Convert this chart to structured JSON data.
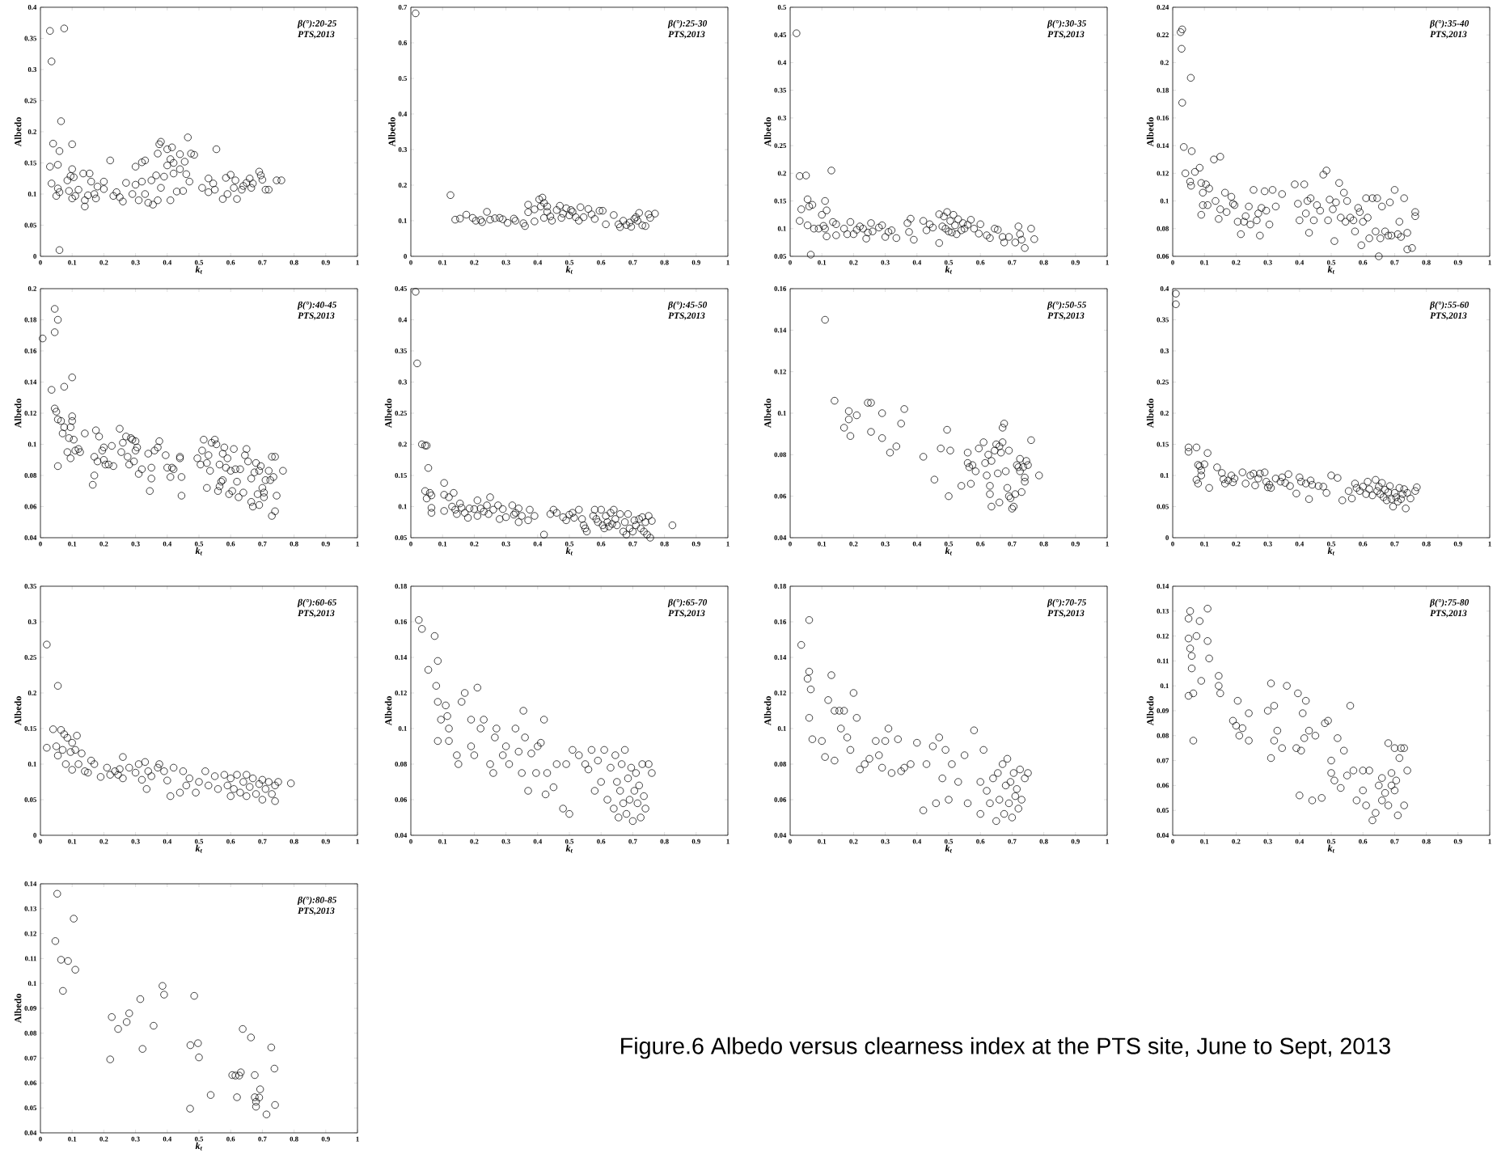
{
  "chart_data": [
    {
      "type": "scatter",
      "marker": "circle",
      "color": "#000000",
      "xlabel": "k$_{t}$",
      "ylabel": "Albedo",
      "annotations": [
        "β(°):20-25",
        "PTS,2013"
      ],
      "xlim": [
        0,
        1
      ],
      "xticks": [
        0,
        0.1,
        0.2,
        0.3,
        0.4,
        0.5,
        0.6,
        0.7,
        0.8,
        0.9,
        1
      ],
      "ylim": [
        0,
        0.4
      ],
      "yticks": [
        0,
        0.05,
        0.1,
        0.15,
        0.2,
        0.25,
        0.3,
        0.35,
        0.4
      ],
      "x": [
        0.03,
        0.035,
        0.075,
        0.065,
        0.04,
        0.06,
        0.03,
        0.055,
        0.035,
        0.05,
        0.055,
        0.06,
        0.06,
        0.085,
        0.09,
        0.095,
        0.1,
        0.105,
        0.1,
        0.1,
        0.11,
        0.12,
        0.135,
        0.14,
        0.14,
        0.15,
        0.155,
        0.16,
        0.17,
        0.18,
        0.175,
        0.2,
        0.2,
        0.22,
        0.23,
        0.24,
        0.25,
        0.26,
        0.27,
        0.29,
        0.3,
        0.3,
        0.31,
        0.32,
        0.32,
        0.33,
        0.33,
        0.34,
        0.35,
        0.355,
        0.365,
        0.37,
        0.37,
        0.375,
        0.38,
        0.38,
        0.39,
        0.4,
        0.4,
        0.41,
        0.41,
        0.415,
        0.42,
        0.42,
        0.43,
        0.44,
        0.44,
        0.45,
        0.455,
        0.46,
        0.465,
        0.47,
        0.475,
        0.485,
        0.51,
        0.53,
        0.53,
        0.545,
        0.55,
        0.555,
        0.575,
        0.585,
        0.59,
        0.6,
        0.61,
        0.615,
        0.62,
        0.635,
        0.64,
        0.65,
        0.66,
        0.665,
        0.67,
        0.69,
        0.695,
        0.7,
        0.71,
        0.72,
        0.745,
        0.76
      ],
      "values": [
        0.362,
        0.313,
        0.366,
        0.217,
        0.181,
        0.169,
        0.144,
        0.147,
        0.117,
        0.097,
        0.109,
        0.103,
        0.01,
        0.122,
        0.105,
        0.129,
        0.14,
        0.127,
        0.18,
        0.093,
        0.097,
        0.107,
        0.133,
        0.08,
        0.09,
        0.098,
        0.133,
        0.12,
        0.1,
        0.112,
        0.093,
        0.12,
        0.108,
        0.154,
        0.097,
        0.103,
        0.095,
        0.088,
        0.118,
        0.1,
        0.144,
        0.115,
        0.09,
        0.12,
        0.151,
        0.154,
        0.1,
        0.086,
        0.122,
        0.083,
        0.13,
        0.09,
        0.165,
        0.18,
        0.184,
        0.11,
        0.128,
        0.146,
        0.172,
        0.09,
        0.156,
        0.175,
        0.133,
        0.15,
        0.104,
        0.164,
        0.14,
        0.105,
        0.152,
        0.132,
        0.191,
        0.12,
        0.165,
        0.163,
        0.11,
        0.125,
        0.103,
        0.117,
        0.107,
        0.172,
        0.092,
        0.126,
        0.1,
        0.131,
        0.11,
        0.122,
        0.092,
        0.107,
        0.113,
        0.118,
        0.125,
        0.11,
        0.117,
        0.136,
        0.13,
        0.123,
        0.107,
        0.107,
        0.122,
        0.122
      ]
    },
    {
      "type": "scatter",
      "marker": "circle",
      "color": "#000000",
      "xlabel": "k$_{t}$",
      "ylabel": "Albedo",
      "annotations": [
        "β(°):25-30",
        "PTS,2013"
      ],
      "xlim": [
        0,
        1
      ],
      "xticks": [
        0,
        0.1,
        0.2,
        0.3,
        0.4,
        0.5,
        0.6,
        0.7,
        0.8,
        0.9,
        1
      ],
      "ylim": [
        0,
        0.7
      ],
      "yticks": [
        0,
        0.1,
        0.2,
        0.3,
        0.4,
        0.5,
        0.6,
        0.7
      ],
      "x": [
        0.015,
        0.125,
        0.14,
        0.155,
        0.175,
        0.195,
        0.205,
        0.22,
        0.225,
        0.24,
        0.25,
        0.265,
        0.28,
        0.29,
        0.305,
        0.325,
        0.33,
        0.355,
        0.36,
        0.37,
        0.37,
        0.39,
        0.39,
        0.405,
        0.41,
        0.415,
        0.42,
        0.42,
        0.43,
        0.43,
        0.44,
        0.445,
        0.46,
        0.47,
        0.475,
        0.48,
        0.49,
        0.5,
        0.505,
        0.51,
        0.52,
        0.53,
        0.535,
        0.545,
        0.56,
        0.57,
        0.58,
        0.595,
        0.605,
        0.615,
        0.64,
        0.655,
        0.66,
        0.67,
        0.68,
        0.69,
        0.695,
        0.705,
        0.71,
        0.715,
        0.72,
        0.73,
        0.74,
        0.75,
        0.755,
        0.77
      ],
      "values": [
        0.683,
        0.172,
        0.103,
        0.106,
        0.117,
        0.108,
        0.1,
        0.102,
        0.096,
        0.125,
        0.103,
        0.107,
        0.108,
        0.104,
        0.094,
        0.106,
        0.1,
        0.093,
        0.085,
        0.145,
        0.124,
        0.098,
        0.132,
        0.16,
        0.14,
        0.165,
        0.15,
        0.108,
        0.14,
        0.125,
        0.112,
        0.1,
        0.13,
        0.142,
        0.108,
        0.12,
        0.135,
        0.115,
        0.13,
        0.125,
        0.11,
        0.1,
        0.138,
        0.11,
        0.133,
        0.118,
        0.105,
        0.128,
        0.128,
        0.09,
        0.116,
        0.09,
        0.082,
        0.1,
        0.088,
        0.095,
        0.083,
        0.105,
        0.11,
        0.1,
        0.122,
        0.087,
        0.085,
        0.118,
        0.108,
        0.12
      ]
    },
    {
      "type": "scatter",
      "marker": "circle",
      "color": "#000000",
      "xlabel": "k$_{t}$",
      "ylabel": "Albedo",
      "annotations": [
        "β(°):30-35",
        "PTS,2013"
      ],
      "xlim": [
        0,
        1
      ],
      "xticks": [
        0,
        0.1,
        0.2,
        0.3,
        0.4,
        0.5,
        0.6,
        0.7,
        0.8,
        0.9,
        1
      ],
      "ylim": [
        0.05,
        0.5
      ],
      "yticks": [
        0.05,
        0.1,
        0.15,
        0.2,
        0.25,
        0.3,
        0.35,
        0.4,
        0.45,
        0.5
      ],
      "x": [
        0.02,
        0.03,
        0.05,
        0.13,
        0.055,
        0.035,
        0.06,
        0.07,
        0.03,
        0.055,
        0.065,
        0.075,
        0.09,
        0.1,
        0.105,
        0.11,
        0.11,
        0.115,
        0.115,
        0.135,
        0.145,
        0.145,
        0.17,
        0.18,
        0.19,
        0.2,
        0.21,
        0.22,
        0.23,
        0.24,
        0.245,
        0.255,
        0.26,
        0.28,
        0.29,
        0.3,
        0.31,
        0.32,
        0.335,
        0.37,
        0.375,
        0.38,
        0.39,
        0.42,
        0.43,
        0.44,
        0.45,
        0.47,
        0.47,
        0.48,
        0.485,
        0.49,
        0.495,
        0.5,
        0.505,
        0.51,
        0.515,
        0.52,
        0.525,
        0.53,
        0.54,
        0.545,
        0.55,
        0.56,
        0.57,
        0.58,
        0.595,
        0.6,
        0.62,
        0.63,
        0.645,
        0.655,
        0.67,
        0.675,
        0.69,
        0.71,
        0.72,
        0.725,
        0.73,
        0.74,
        0.76,
        0.77
      ],
      "values": [
        0.453,
        0.195,
        0.196,
        0.205,
        0.153,
        0.135,
        0.14,
        0.143,
        0.114,
        0.106,
        0.053,
        0.1,
        0.1,
        0.125,
        0.105,
        0.1,
        0.15,
        0.133,
        0.086,
        0.112,
        0.108,
        0.088,
        0.1,
        0.09,
        0.112,
        0.09,
        0.098,
        0.104,
        0.1,
        0.082,
        0.093,
        0.11,
        0.095,
        0.102,
        0.106,
        0.085,
        0.094,
        0.097,
        0.083,
        0.11,
        0.094,
        0.118,
        0.08,
        0.114,
        0.097,
        0.108,
        0.102,
        0.074,
        0.126,
        0.104,
        0.122,
        0.1,
        0.13,
        0.095,
        0.114,
        0.093,
        0.125,
        0.106,
        0.09,
        0.117,
        0.097,
        0.11,
        0.1,
        0.107,
        0.116,
        0.1,
        0.091,
        0.108,
        0.088,
        0.083,
        0.1,
        0.098,
        0.085,
        0.075,
        0.085,
        0.075,
        0.104,
        0.09,
        0.08,
        0.065,
        0.1,
        0.081
      ]
    },
    {
      "type": "scatter",
      "marker": "circle",
      "color": "#000000",
      "xlabel": "k$_{t}$",
      "ylabel": "Albedo",
      "annotations": [
        "β(°):35-40",
        "PTS,2013"
      ],
      "xlim": [
        0,
        1
      ],
      "xticks": [
        0,
        0.1,
        0.2,
        0.3,
        0.4,
        0.5,
        0.6,
        0.7,
        0.8,
        0.9,
        1
      ],
      "ylim": [
        0.06,
        0.24
      ],
      "yticks": [
        0.06,
        0.08,
        0.1,
        0.12,
        0.14,
        0.16,
        0.18,
        0.2,
        0.22,
        0.24
      ],
      "x": [
        0.025,
        0.03,
        0.028,
        0.03,
        0.057,
        0.035,
        0.06,
        0.04,
        0.055,
        0.058,
        0.07,
        0.085,
        0.09,
        0.095,
        0.095,
        0.09,
        0.105,
        0.11,
        0.115,
        0.13,
        0.135,
        0.15,
        0.145,
        0.15,
        0.165,
        0.17,
        0.185,
        0.19,
        0.195,
        0.205,
        0.215,
        0.225,
        0.23,
        0.24,
        0.245,
        0.255,
        0.265,
        0.27,
        0.275,
        0.28,
        0.29,
        0.295,
        0.305,
        0.315,
        0.325,
        0.345,
        0.385,
        0.395,
        0.4,
        0.415,
        0.42,
        0.425,
        0.43,
        0.435,
        0.445,
        0.455,
        0.465,
        0.475,
        0.485,
        0.49,
        0.495,
        0.505,
        0.51,
        0.515,
        0.525,
        0.53,
        0.54,
        0.545,
        0.55,
        0.56,
        0.57,
        0.575,
        0.585,
        0.59,
        0.595,
        0.6,
        0.61,
        0.615,
        0.62,
        0.63,
        0.64,
        0.645,
        0.65,
        0.655,
        0.66,
        0.67,
        0.68,
        0.685,
        0.69,
        0.7,
        0.71,
        0.715,
        0.72,
        0.73,
        0.74,
        0.74,
        0.755,
        0.765,
        0.765
      ],
      "values": [
        0.222,
        0.224,
        0.21,
        0.171,
        0.189,
        0.139,
        0.136,
        0.12,
        0.114,
        0.111,
        0.121,
        0.124,
        0.113,
        0.106,
        0.097,
        0.09,
        0.112,
        0.097,
        0.109,
        0.13,
        0.1,
        0.132,
        0.087,
        0.094,
        0.106,
        0.092,
        0.103,
        0.098,
        0.097,
        0.085,
        0.076,
        0.085,
        0.089,
        0.096,
        0.083,
        0.108,
        0.086,
        0.091,
        0.075,
        0.095,
        0.107,
        0.093,
        0.083,
        0.108,
        0.096,
        0.105,
        0.112,
        0.098,
        0.086,
        0.112,
        0.091,
        0.1,
        0.077,
        0.102,
        0.086,
        0.097,
        0.093,
        0.119,
        0.122,
        0.086,
        0.101,
        0.094,
        0.071,
        0.099,
        0.113,
        0.088,
        0.106,
        0.085,
        0.1,
        0.088,
        0.086,
        0.078,
        0.095,
        0.092,
        0.068,
        0.085,
        0.102,
        0.088,
        0.073,
        0.102,
        0.078,
        0.102,
        0.06,
        0.073,
        0.096,
        0.078,
        0.075,
        0.099,
        0.075,
        0.108,
        0.076,
        0.085,
        0.074,
        0.102,
        0.077,
        0.065,
        0.066,
        0.092,
        0.089
      ]
    },
    {
      "type": "scatter",
      "marker": "circle",
      "color": "#000000",
      "xlabel": "k$_{t}$",
      "ylabel": "Albedo",
      "annotations": [
        "β(°):40-45",
        "PTS,2013"
      ],
      "xlim": [
        0,
        1
      ],
      "xticks": [
        0,
        0.1,
        0.2,
        0.3,
        0.4,
        0.5,
        0.6,
        0.7,
        0.8,
        0.9,
        1
      ],
      "ylim": [
        0.04,
        0.2
      ],
      "yticks": [
        0.04,
        0.06,
        0.08,
        0.1,
        0.12,
        0.14,
        0.16,
        0.18,
        0.2
      ],
      "x": [
        0.007,
        0.045,
        0.045,
        0.055,
        0.035,
        0.075,
        0.1,
        0.045,
        0.05,
        0.055,
        0.065,
        0.07,
        0.075,
        0.055,
        0.085,
        0.09,
        0.095,
        0.095,
        0.1,
        0.1,
        0.105,
        0.11,
        0.12,
        0.125,
        0.14,
        0.165,
        0.17,
        0.17,
        0.175,
        0.18,
        0.185,
        0.195,
        0.2,
        0.2,
        0.205,
        0.215,
        0.225,
        0.23,
        0.25,
        0.255,
        0.26,
        0.27,
        0.275,
        0.28,
        0.285,
        0.29,
        0.295,
        0.3,
        0.3,
        0.305,
        0.31,
        0.32,
        0.34,
        0.345,
        0.35,
        0.35,
        0.36,
        0.37,
        0.375,
        0.395,
        0.4,
        0.41,
        0.415,
        0.42,
        0.44,
        0.44,
        0.445,
        0.445,
        0.495,
        0.505,
        0.51,
        0.515,
        0.525,
        0.525,
        0.53,
        0.535,
        0.54,
        0.55,
        0.555,
        0.56,
        0.565,
        0.565,
        0.57,
        0.575,
        0.575,
        0.58,
        0.585,
        0.59,
        0.595,
        0.6,
        0.605,
        0.61,
        0.615,
        0.62,
        0.625,
        0.63,
        0.64,
        0.645,
        0.65,
        0.655,
        0.665,
        0.665,
        0.67,
        0.675,
        0.68,
        0.685,
        0.69,
        0.69,
        0.695,
        0.7,
        0.705,
        0.705,
        0.71,
        0.72,
        0.725,
        0.73,
        0.73,
        0.735,
        0.74,
        0.74,
        0.745,
        0.765
      ],
      "values": [
        0.168,
        0.187,
        0.172,
        0.18,
        0.135,
        0.137,
        0.143,
        0.123,
        0.121,
        0.116,
        0.115,
        0.107,
        0.111,
        0.086,
        0.095,
        0.104,
        0.111,
        0.091,
        0.118,
        0.115,
        0.103,
        0.096,
        0.097,
        0.095,
        0.107,
        0.074,
        0.08,
        0.092,
        0.109,
        0.089,
        0.105,
        0.096,
        0.09,
        0.098,
        0.087,
        0.087,
        0.099,
        0.086,
        0.11,
        0.095,
        0.101,
        0.105,
        0.092,
        0.087,
        0.104,
        0.103,
        0.089,
        0.096,
        0.102,
        0.098,
        0.081,
        0.084,
        0.094,
        0.07,
        0.078,
        0.085,
        0.096,
        0.098,
        0.102,
        0.093,
        0.085,
        0.079,
        0.085,
        0.084,
        0.091,
        0.092,
        0.079,
        0.067,
        0.091,
        0.087,
        0.096,
        0.103,
        0.072,
        0.088,
        0.093,
        0.083,
        0.101,
        0.103,
        0.1,
        0.07,
        0.073,
        0.087,
        0.076,
        0.077,
        0.094,
        0.098,
        0.085,
        0.091,
        0.068,
        0.083,
        0.07,
        0.097,
        0.084,
        0.076,
        0.066,
        0.084,
        0.069,
        0.093,
        0.097,
        0.089,
        0.078,
        0.063,
        0.06,
        0.082,
        0.088,
        0.068,
        0.083,
        0.061,
        0.086,
        0.072,
        0.069,
        0.066,
        0.077,
        0.083,
        0.077,
        0.092,
        0.054,
        0.079,
        0.092,
        0.057,
        0.067,
        0.083
      ]
    },
    {
      "type": "scatter",
      "marker": "circle",
      "color": "#000000",
      "xlabel": "k$_{t}$",
      "ylabel": "Albedo",
      "annotations": [
        "β(°):45-50",
        "PTS,2013"
      ],
      "xlim": [
        0,
        1
      ],
      "xticks": [
        0,
        0.1,
        0.2,
        0.3,
        0.4,
        0.5,
        0.6,
        0.7,
        0.8,
        0.9,
        1
      ],
      "ylim": [
        0.05,
        0.45
      ],
      "yticks": [
        0.05,
        0.1,
        0.15,
        0.2,
        0.25,
        0.3,
        0.35,
        0.4,
        0.45
      ],
      "x": [
        0.015,
        0.02,
        0.035,
        0.045,
        0.05,
        0.055,
        0.045,
        0.05,
        0.06,
        0.065,
        0.065,
        0.065,
        0.105,
        0.105,
        0.105,
        0.12,
        0.13,
        0.135,
        0.14,
        0.145,
        0.155,
        0.16,
        0.17,
        0.18,
        0.185,
        0.2,
        0.21,
        0.21,
        0.22,
        0.23,
        0.24,
        0.245,
        0.25,
        0.26,
        0.275,
        0.28,
        0.29,
        0.3,
        0.32,
        0.325,
        0.33,
        0.34,
        0.34,
        0.35,
        0.37,
        0.375,
        0.39,
        0.42,
        0.44,
        0.45,
        0.46,
        0.48,
        0.49,
        0.5,
        0.51,
        0.515,
        0.53,
        0.54,
        0.545,
        0.55,
        0.555,
        0.575,
        0.58,
        0.585,
        0.59,
        0.6,
        0.605,
        0.61,
        0.615,
        0.62,
        0.625,
        0.63,
        0.635,
        0.64,
        0.645,
        0.65,
        0.66,
        0.67,
        0.675,
        0.68,
        0.685,
        0.69,
        0.7,
        0.705,
        0.71,
        0.72,
        0.725,
        0.73,
        0.735,
        0.74,
        0.745,
        0.75,
        0.755,
        0.76,
        0.825
      ],
      "values": [
        0.445,
        0.33,
        0.2,
        0.198,
        0.198,
        0.162,
        0.125,
        0.113,
        0.122,
        0.118,
        0.098,
        0.09,
        0.138,
        0.119,
        0.093,
        0.115,
        0.1,
        0.122,
        0.095,
        0.088,
        0.105,
        0.098,
        0.09,
        0.082,
        0.097,
        0.096,
        0.11,
        0.085,
        0.097,
        0.092,
        0.102,
        0.088,
        0.115,
        0.095,
        0.102,
        0.08,
        0.096,
        0.083,
        0.102,
        0.087,
        0.09,
        0.075,
        0.097,
        0.085,
        0.078,
        0.095,
        0.085,
        0.055,
        0.088,
        0.095,
        0.09,
        0.083,
        0.078,
        0.087,
        0.09,
        0.082,
        0.095,
        0.08,
        0.07,
        0.065,
        0.06,
        0.085,
        0.095,
        0.08,
        0.075,
        0.095,
        0.07,
        0.065,
        0.085,
        0.075,
        0.068,
        0.09,
        0.072,
        0.095,
        0.08,
        0.07,
        0.088,
        0.06,
        0.075,
        0.055,
        0.088,
        0.065,
        0.06,
        0.078,
        0.07,
        0.08,
        0.065,
        0.083,
        0.06,
        0.075,
        0.055,
        0.085,
        0.05,
        0.077,
        0.07
      ]
    },
    {
      "type": "scatter",
      "marker": "circle",
      "color": "#000000",
      "xlabel": "k$_{t}$",
      "ylabel": "Albedo",
      "annotations": [
        "β(°):50-55",
        "PTS,2013"
      ],
      "xlim": [
        0,
        1
      ],
      "xticks": [
        0,
        0.1,
        0.2,
        0.3,
        0.4,
        0.5,
        0.6,
        0.7,
        0.8,
        0.9,
        1
      ],
      "ylim": [
        0.04,
        0.16
      ],
      "yticks": [
        0.04,
        0.06,
        0.08,
        0.1,
        0.12,
        0.14,
        0.16
      ],
      "x": [
        0.11,
        0.14,
        0.185,
        0.185,
        0.17,
        0.19,
        0.21,
        0.245,
        0.255,
        0.255,
        0.29,
        0.29,
        0.315,
        0.335,
        0.35,
        0.36,
        0.42,
        0.455,
        0.475,
        0.495,
        0.5,
        0.505,
        0.54,
        0.56,
        0.56,
        0.565,
        0.57,
        0.575,
        0.585,
        0.595,
        0.61,
        0.615,
        0.62,
        0.625,
        0.63,
        0.63,
        0.635,
        0.635,
        0.645,
        0.65,
        0.655,
        0.66,
        0.66,
        0.665,
        0.67,
        0.67,
        0.675,
        0.68,
        0.685,
        0.69,
        0.69,
        0.695,
        0.7,
        0.705,
        0.71,
        0.715,
        0.72,
        0.725,
        0.725,
        0.73,
        0.735,
        0.74,
        0.74,
        0.745,
        0.75,
        0.76,
        0.785
      ],
      "values": [
        0.145,
        0.106,
        0.101,
        0.097,
        0.093,
        0.089,
        0.099,
        0.105,
        0.105,
        0.091,
        0.1,
        0.088,
        0.081,
        0.084,
        0.095,
        0.102,
        0.079,
        0.068,
        0.083,
        0.092,
        0.06,
        0.082,
        0.065,
        0.081,
        0.076,
        0.074,
        0.066,
        0.075,
        0.072,
        0.083,
        0.086,
        0.076,
        0.07,
        0.08,
        0.065,
        0.061,
        0.055,
        0.077,
        0.082,
        0.085,
        0.071,
        0.084,
        0.057,
        0.081,
        0.093,
        0.086,
        0.095,
        0.072,
        0.064,
        0.082,
        0.06,
        0.059,
        0.054,
        0.055,
        0.061,
        0.075,
        0.074,
        0.078,
        0.072,
        0.062,
        0.074,
        0.069,
        0.067,
        0.077,
        0.075,
        0.087,
        0.07
      ]
    },
    {
      "type": "scatter",
      "marker": "circle",
      "color": "#000000",
      "xlabel": "k$_{t}$",
      "ylabel": "Albedo",
      "annotations": [
        "β(°):55-60",
        "PTS,2013"
      ],
      "xlim": [
        0,
        1
      ],
      "xticks": [
        0,
        0.1,
        0.2,
        0.3,
        0.4,
        0.5,
        0.6,
        0.7,
        0.8,
        0.9,
        1
      ],
      "ylim": [
        0,
        0.4
      ],
      "yticks": [
        0,
        0.05,
        0.1,
        0.15,
        0.2,
        0.25,
        0.3,
        0.35,
        0.4
      ],
      "x": [
        0.01,
        0.01,
        0.05,
        0.05,
        0.075,
        0.08,
        0.075,
        0.085,
        0.08,
        0.09,
        0.09,
        0.1,
        0.11,
        0.115,
        0.14,
        0.155,
        0.16,
        0.165,
        0.175,
        0.185,
        0.19,
        0.195,
        0.22,
        0.23,
        0.245,
        0.255,
        0.26,
        0.27,
        0.275,
        0.29,
        0.295,
        0.3,
        0.305,
        0.31,
        0.325,
        0.34,
        0.345,
        0.355,
        0.365,
        0.37,
        0.39,
        0.4,
        0.405,
        0.42,
        0.43,
        0.435,
        0.44,
        0.46,
        0.475,
        0.485,
        0.5,
        0.52,
        0.535,
        0.555,
        0.565,
        0.575,
        0.58,
        0.59,
        0.6,
        0.61,
        0.615,
        0.62,
        0.63,
        0.64,
        0.645,
        0.65,
        0.655,
        0.66,
        0.665,
        0.67,
        0.675,
        0.68,
        0.685,
        0.69,
        0.695,
        0.7,
        0.705,
        0.71,
        0.715,
        0.72,
        0.725,
        0.73,
        0.735,
        0.74,
        0.75,
        0.765,
        0.77
      ],
      "values": [
        0.392,
        0.375,
        0.145,
        0.138,
        0.145,
        0.117,
        0.093,
        0.115,
        0.087,
        0.1,
        0.108,
        0.118,
        0.136,
        0.08,
        0.113,
        0.104,
        0.094,
        0.087,
        0.092,
        0.1,
        0.089,
        0.095,
        0.105,
        0.087,
        0.1,
        0.103,
        0.084,
        0.095,
        0.103,
        0.105,
        0.09,
        0.081,
        0.085,
        0.08,
        0.095,
        0.09,
        0.097,
        0.088,
        0.102,
        0.083,
        0.071,
        0.097,
        0.09,
        0.087,
        0.062,
        0.092,
        0.085,
        0.083,
        0.082,
        0.072,
        0.1,
        0.096,
        0.06,
        0.075,
        0.063,
        0.087,
        0.08,
        0.075,
        0.082,
        0.07,
        0.09,
        0.078,
        0.068,
        0.093,
        0.075,
        0.082,
        0.07,
        0.088,
        0.065,
        0.077,
        0.06,
        0.073,
        0.083,
        0.062,
        0.05,
        0.072,
        0.065,
        0.058,
        0.08,
        0.062,
        0.07,
        0.078,
        0.047,
        0.072,
        0.063,
        0.075,
        0.081
      ]
    },
    {
      "type": "scatter",
      "marker": "circle",
      "color": "#000000",
      "xlabel": "k$_{t}$",
      "ylabel": "Albedo",
      "annotations": [
        "β(°):60-65",
        "PTS,2013"
      ],
      "xlim": [
        0,
        1
      ],
      "xticks": [
        0,
        0.1,
        0.2,
        0.3,
        0.4,
        0.5,
        0.6,
        0.7,
        0.8,
        0.9,
        1
      ],
      "ylim": [
        0,
        0.35
      ],
      "yticks": [
        0,
        0.05,
        0.1,
        0.15,
        0.2,
        0.25,
        0.3,
        0.35
      ],
      "x": [
        0.02,
        0.055,
        0.02,
        0.04,
        0.05,
        0.055,
        0.065,
        0.07,
        0.075,
        0.08,
        0.085,
        0.095,
        0.1,
        0.1,
        0.11,
        0.115,
        0.12,
        0.13,
        0.14,
        0.15,
        0.16,
        0.17,
        0.19,
        0.21,
        0.22,
        0.235,
        0.245,
        0.25,
        0.26,
        0.26,
        0.28,
        0.3,
        0.31,
        0.32,
        0.33,
        0.335,
        0.34,
        0.35,
        0.37,
        0.375,
        0.39,
        0.4,
        0.41,
        0.42,
        0.44,
        0.45,
        0.46,
        0.47,
        0.49,
        0.5,
        0.52,
        0.53,
        0.55,
        0.56,
        0.58,
        0.59,
        0.6,
        0.6,
        0.61,
        0.62,
        0.63,
        0.64,
        0.65,
        0.65,
        0.66,
        0.67,
        0.68,
        0.69,
        0.7,
        0.7,
        0.71,
        0.72,
        0.73,
        0.74,
        0.74,
        0.75,
        0.79
      ],
      "values": [
        0.268,
        0.21,
        0.123,
        0.149,
        0.125,
        0.112,
        0.148,
        0.12,
        0.142,
        0.1,
        0.137,
        0.117,
        0.13,
        0.092,
        0.12,
        0.14,
        0.1,
        0.115,
        0.09,
        0.088,
        0.105,
        0.1,
        0.082,
        0.095,
        0.085,
        0.09,
        0.085,
        0.093,
        0.11,
        0.08,
        0.095,
        0.088,
        0.1,
        0.078,
        0.103,
        0.065,
        0.09,
        0.083,
        0.095,
        0.1,
        0.09,
        0.077,
        0.055,
        0.095,
        0.06,
        0.09,
        0.07,
        0.08,
        0.06,
        0.075,
        0.09,
        0.07,
        0.083,
        0.065,
        0.085,
        0.07,
        0.055,
        0.08,
        0.065,
        0.085,
        0.06,
        0.075,
        0.055,
        0.085,
        0.068,
        0.08,
        0.058,
        0.072,
        0.05,
        0.078,
        0.065,
        0.075,
        0.058,
        0.048,
        0.07,
        0.075,
        0.073
      ]
    },
    {
      "type": "scatter",
      "marker": "circle",
      "color": "#000000",
      "xlabel": "k$_{t}$",
      "ylabel": "Albedo",
      "annotations": [
        "β(°):65-70",
        "PTS,2013"
      ],
      "xlim": [
        0,
        1
      ],
      "xticks": [
        0,
        0.1,
        0.2,
        0.3,
        0.4,
        0.5,
        0.6,
        0.7,
        0.8,
        0.9,
        1
      ],
      "ylim": [
        0.04,
        0.18
      ],
      "yticks": [
        0.04,
        0.06,
        0.08,
        0.1,
        0.12,
        0.14,
        0.16,
        0.18
      ],
      "x": [
        0.025,
        0.035,
        0.075,
        0.055,
        0.085,
        0.08,
        0.085,
        0.085,
        0.095,
        0.11,
        0.115,
        0.12,
        0.12,
        0.145,
        0.15,
        0.16,
        0.17,
        0.19,
        0.19,
        0.2,
        0.21,
        0.22,
        0.23,
        0.25,
        0.26,
        0.265,
        0.27,
        0.29,
        0.3,
        0.31,
        0.33,
        0.34,
        0.35,
        0.355,
        0.36,
        0.37,
        0.38,
        0.395,
        0.4,
        0.41,
        0.42,
        0.425,
        0.43,
        0.45,
        0.46,
        0.48,
        0.49,
        0.5,
        0.51,
        0.53,
        0.55,
        0.56,
        0.57,
        0.58,
        0.59,
        0.6,
        0.61,
        0.62,
        0.63,
        0.64,
        0.645,
        0.65,
        0.655,
        0.66,
        0.665,
        0.67,
        0.675,
        0.68,
        0.685,
        0.69,
        0.695,
        0.7,
        0.705,
        0.71,
        0.715,
        0.72,
        0.725,
        0.73,
        0.735,
        0.74,
        0.75,
        0.76
      ],
      "values": [
        0.161,
        0.156,
        0.152,
        0.133,
        0.138,
        0.124,
        0.115,
        0.093,
        0.105,
        0.113,
        0.107,
        0.093,
        0.1,
        0.085,
        0.08,
        0.115,
        0.12,
        0.105,
        0.09,
        0.085,
        0.123,
        0.1,
        0.105,
        0.08,
        0.075,
        0.095,
        0.1,
        0.085,
        0.09,
        0.08,
        0.1,
        0.087,
        0.075,
        0.11,
        0.095,
        0.065,
        0.086,
        0.075,
        0.09,
        0.092,
        0.105,
        0.063,
        0.075,
        0.067,
        0.08,
        0.055,
        0.08,
        0.052,
        0.088,
        0.085,
        0.08,
        0.077,
        0.088,
        0.065,
        0.082,
        0.07,
        0.088,
        0.06,
        0.078,
        0.055,
        0.085,
        0.07,
        0.05,
        0.065,
        0.08,
        0.058,
        0.088,
        0.052,
        0.072,
        0.06,
        0.078,
        0.048,
        0.065,
        0.075,
        0.058,
        0.068,
        0.05,
        0.08,
        0.062,
        0.055,
        0.08,
        0.075
      ]
    },
    {
      "type": "scatter",
      "marker": "circle",
      "color": "#000000",
      "xlabel": "k$_{t}$",
      "ylabel": "Albedo",
      "annotations": [
        "β(°):70-75",
        "PTS,2013"
      ],
      "xlim": [
        0,
        1
      ],
      "xticks": [
        0,
        0.1,
        0.2,
        0.3,
        0.4,
        0.5,
        0.6,
        0.7,
        0.8,
        0.9,
        1
      ],
      "ylim": [
        0.04,
        0.18
      ],
      "yticks": [
        0.04,
        0.06,
        0.08,
        0.1,
        0.12,
        0.14,
        0.16,
        0.18
      ],
      "x": [
        0.035,
        0.06,
        0.055,
        0.06,
        0.065,
        0.06,
        0.07,
        0.1,
        0.11,
        0.12,
        0.13,
        0.14,
        0.14,
        0.155,
        0.16,
        0.17,
        0.18,
        0.19,
        0.2,
        0.21,
        0.22,
        0.235,
        0.25,
        0.27,
        0.28,
        0.29,
        0.3,
        0.31,
        0.32,
        0.34,
        0.35,
        0.36,
        0.38,
        0.4,
        0.42,
        0.43,
        0.45,
        0.46,
        0.47,
        0.48,
        0.49,
        0.5,
        0.51,
        0.53,
        0.55,
        0.56,
        0.58,
        0.6,
        0.6,
        0.61,
        0.62,
        0.63,
        0.64,
        0.65,
        0.655,
        0.66,
        0.67,
        0.675,
        0.68,
        0.685,
        0.69,
        0.695,
        0.7,
        0.705,
        0.71,
        0.715,
        0.72,
        0.725,
        0.73,
        0.74,
        0.75
      ],
      "values": [
        0.147,
        0.161,
        0.128,
        0.132,
        0.122,
        0.106,
        0.094,
        0.093,
        0.084,
        0.116,
        0.13,
        0.11,
        0.082,
        0.11,
        0.1,
        0.11,
        0.095,
        0.088,
        0.12,
        0.106,
        0.077,
        0.08,
        0.083,
        0.093,
        0.085,
        0.078,
        0.093,
        0.1,
        0.075,
        0.094,
        0.076,
        0.078,
        0.08,
        0.092,
        0.054,
        0.08,
        0.09,
        0.058,
        0.095,
        0.072,
        0.088,
        0.06,
        0.08,
        0.07,
        0.085,
        0.058,
        0.099,
        0.052,
        0.07,
        0.088,
        0.065,
        0.058,
        0.072,
        0.048,
        0.075,
        0.06,
        0.08,
        0.052,
        0.068,
        0.083,
        0.058,
        0.07,
        0.05,
        0.075,
        0.062,
        0.066,
        0.055,
        0.077,
        0.06,
        0.072,
        0.075
      ]
    },
    {
      "type": "scatter",
      "marker": "circle",
      "color": "#000000",
      "xlabel": "k$_{t}$",
      "ylabel": "Albedo",
      "annotations": [
        "β(°):75-80",
        "PTS,2013"
      ],
      "xlim": [
        0,
        1
      ],
      "xticks": [
        0,
        0.1,
        0.2,
        0.3,
        0.4,
        0.5,
        0.6,
        0.7,
        0.8,
        0.9,
        1
      ],
      "ylim": [
        0.04,
        0.14
      ],
      "yticks": [
        0.04,
        0.05,
        0.06,
        0.07,
        0.08,
        0.09,
        0.1,
        0.11,
        0.12,
        0.13,
        0.14
      ],
      "x": [
        0.05,
        0.055,
        0.05,
        0.055,
        0.06,
        0.06,
        0.05,
        0.065,
        0.065,
        0.075,
        0.085,
        0.09,
        0.11,
        0.11,
        0.115,
        0.145,
        0.145,
        0.15,
        0.19,
        0.205,
        0.2,
        0.21,
        0.22,
        0.24,
        0.24,
        0.3,
        0.31,
        0.31,
        0.32,
        0.32,
        0.33,
        0.345,
        0.36,
        0.39,
        0.395,
        0.4,
        0.405,
        0.41,
        0.415,
        0.42,
        0.43,
        0.44,
        0.45,
        0.47,
        0.48,
        0.49,
        0.5,
        0.5,
        0.51,
        0.52,
        0.53,
        0.54,
        0.55,
        0.56,
        0.57,
        0.58,
        0.6,
        0.6,
        0.61,
        0.62,
        0.63,
        0.64,
        0.65,
        0.66,
        0.66,
        0.67,
        0.68,
        0.68,
        0.69,
        0.69,
        0.7,
        0.7,
        0.705,
        0.71,
        0.715,
        0.72,
        0.73,
        0.73,
        0.74
      ],
      "values": [
        0.127,
        0.13,
        0.119,
        0.115,
        0.112,
        0.107,
        0.096,
        0.097,
        0.078,
        0.12,
        0.126,
        0.102,
        0.131,
        0.118,
        0.111,
        0.104,
        0.1,
        0.097,
        0.086,
        0.094,
        0.084,
        0.08,
        0.083,
        0.078,
        0.089,
        0.09,
        0.101,
        0.071,
        0.078,
        0.092,
        0.082,
        0.075,
        0.1,
        0.075,
        0.097,
        0.056,
        0.074,
        0.089,
        0.079,
        0.094,
        0.082,
        0.054,
        0.08,
        0.055,
        0.085,
        0.086,
        0.065,
        0.07,
        0.062,
        0.079,
        0.059,
        0.074,
        0.064,
        0.092,
        0.066,
        0.054,
        0.058,
        0.066,
        0.052,
        0.066,
        0.046,
        0.049,
        0.06,
        0.063,
        0.054,
        0.057,
        0.052,
        0.077,
        0.06,
        0.065,
        0.058,
        0.075,
        0.062,
        0.048,
        0.071,
        0.075,
        0.052,
        0.075,
        0.066
      ]
    },
    {
      "type": "scatter",
      "marker": "circle",
      "color": "#000000",
      "xlabel": "k$_{t}$",
      "ylabel": "Albedo",
      "annotations": [
        "β(°):80-85",
        "PTS,2013"
      ],
      "xlim": [
        0,
        1
      ],
      "xticks": [
        0,
        0.1,
        0.2,
        0.3,
        0.4,
        0.5,
        0.6,
        0.7,
        0.8,
        0.9,
        1
      ],
      "ylim": [
        0.04,
        0.14
      ],
      "yticks": [
        0.04,
        0.05,
        0.06,
        0.07,
        0.08,
        0.09,
        0.1,
        0.11,
        0.12,
        0.13,
        0.14
      ],
      "x": [
        0.053,
        0.105,
        0.047,
        0.065,
        0.087,
        0.11,
        0.071,
        0.225,
        0.245,
        0.22,
        0.28,
        0.272,
        0.315,
        0.322,
        0.357,
        0.385,
        0.39,
        0.485,
        0.473,
        0.497,
        0.5,
        0.472,
        0.537,
        0.605,
        0.615,
        0.627,
        0.632,
        0.62,
        0.638,
        0.664,
        0.676,
        0.676,
        0.68,
        0.68,
        0.69,
        0.693,
        0.713,
        0.728,
        0.738,
        0.74
      ],
      "values": [
        0.136,
        0.126,
        0.117,
        0.1095,
        0.109,
        0.1055,
        0.097,
        0.0865,
        0.0817,
        0.0695,
        0.088,
        0.0845,
        0.0937,
        0.0737,
        0.083,
        0.099,
        0.0955,
        0.095,
        0.0752,
        0.076,
        0.0703,
        0.0497,
        0.0552,
        0.0632,
        0.063,
        0.063,
        0.0643,
        0.0543,
        0.0817,
        0.0783,
        0.0632,
        0.0543,
        0.0525,
        0.0505,
        0.0542,
        0.0575,
        0.0474,
        0.0743,
        0.0658,
        0.0512
      ]
    },
    {
      "type": "other",
      "title": "Figure.6 Albedo versus clearness index  at the PTS site, June to Sept,  2013"
    }
  ]
}
